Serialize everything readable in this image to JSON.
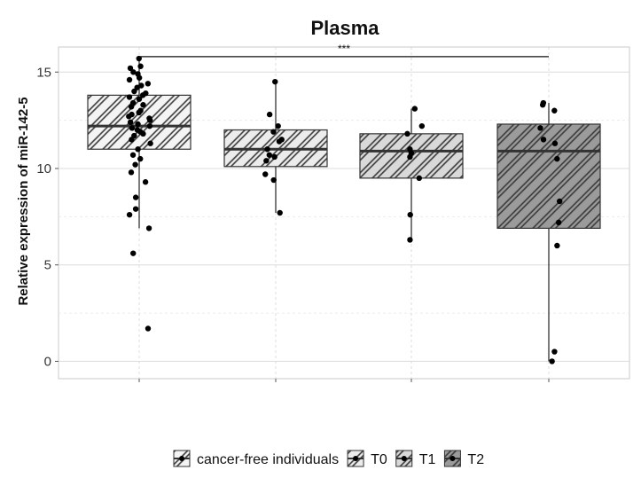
{
  "chart_data": {
    "type": "box",
    "title": "Plasma",
    "xlabel": "",
    "ylabel": "Relative expression of  miR-142-5",
    "ylim": [
      -0.9,
      16.3
    ],
    "yticks": [
      0,
      5,
      10,
      15
    ],
    "grid": true,
    "legend_position": "bottom",
    "significance": {
      "label": "***",
      "from": "cancer-free individuals",
      "to": "T2",
      "y": 15.8
    },
    "groups": [
      {
        "name": "cancer-free individuals",
        "fill": "#f4f4f4",
        "q1": 11.0,
        "median": 12.2,
        "q3": 13.8,
        "whisker_low": 6.9,
        "whisker_high": 15.7,
        "points": [
          15.7,
          15.3,
          15.2,
          15.0,
          14.9,
          14.7,
          14.6,
          14.4,
          14.3,
          14.2,
          14.0,
          13.9,
          13.8,
          13.7,
          13.6,
          13.4,
          13.3,
          13.2,
          13.0,
          12.9,
          12.8,
          12.7,
          12.6,
          12.5,
          12.4,
          12.3,
          12.2,
          12.1,
          12.0,
          11.9,
          11.8,
          11.7,
          11.5,
          11.3,
          11.0,
          10.7,
          10.5,
          10.2,
          9.8,
          9.3,
          8.5,
          7.9,
          7.6,
          6.9,
          5.6,
          1.7
        ]
      },
      {
        "name": "T0",
        "fill": "#ececec",
        "q1": 10.1,
        "median": 11.0,
        "q3": 12.0,
        "whisker_low": 7.7,
        "whisker_high": 14.5,
        "points": [
          14.5,
          12.8,
          12.2,
          11.9,
          11.5,
          11.4,
          11.0,
          10.7,
          10.6,
          10.4,
          9.7,
          9.4,
          7.7
        ]
      },
      {
        "name": "T1",
        "fill": "#d9d9d9",
        "q1": 9.5,
        "median": 10.9,
        "q3": 11.8,
        "whisker_low": 6.3,
        "whisker_high": 13.1,
        "points": [
          13.1,
          12.2,
          11.8,
          11.0,
          10.8,
          10.6,
          9.5,
          7.6,
          6.3
        ]
      },
      {
        "name": "T2",
        "fill": "#9b9b9b",
        "q1": 6.9,
        "median": 10.9,
        "q3": 12.3,
        "whisker_low": 0.0,
        "whisker_high": 13.4,
        "points": [
          13.4,
          13.3,
          13.0,
          12.1,
          11.5,
          11.3,
          10.5,
          8.3,
          7.2,
          6.0,
          0.5,
          0.0
        ]
      }
    ]
  }
}
